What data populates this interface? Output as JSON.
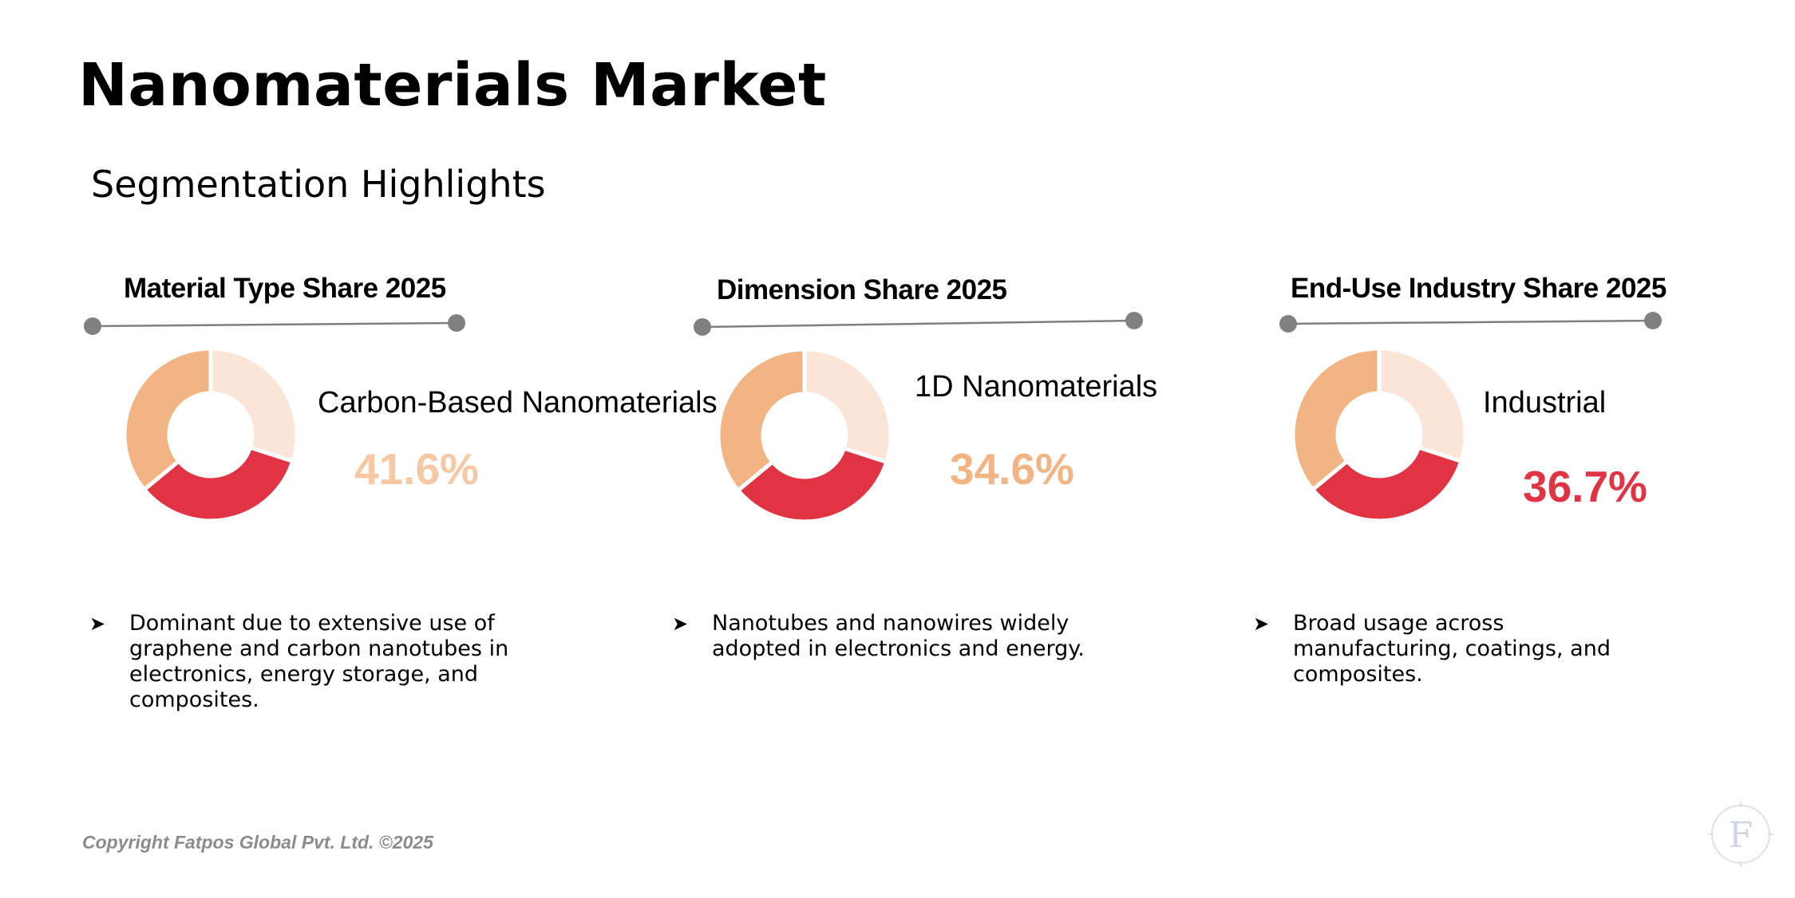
{
  "title": "Nanomaterials Market",
  "subtitle": "Segmentation Highlights",
  "colors": {
    "light": "#fae5d8",
    "orange": "#f3b484",
    "red": "#e03444",
    "connector": "#7f7f7f",
    "dot": "#808080"
  },
  "bullet_icon": "arrowhead-bullet-icon",
  "copyright": "Copyright Fatpos Global Pvt. Ltd. ©2025",
  "logo_letter": "F",
  "chart_data": [
    {
      "type": "pie",
      "title": "Material Type Share 2025",
      "highlight_label": "Carbon-Based Nanomaterials",
      "highlight_value": "41.6%",
      "highlight_color": "#f6c8a4",
      "values": [
        30,
        34,
        36
      ],
      "colors": [
        "#fae5d8",
        "#e03444",
        "#f3b484"
      ],
      "note": "Dominant due to extensive use of graphene and carbon nanotubes in electronics, energy storage, and composites."
    },
    {
      "type": "pie",
      "title": "Dimension Share 2025",
      "highlight_label": "1D Nanomaterials",
      "highlight_value": "34.6%",
      "highlight_color": "#f3b484",
      "values": [
        30,
        34,
        36
      ],
      "colors": [
        "#fae5d8",
        "#e03444",
        "#f3b484"
      ],
      "note": "Nanotubes and nanowires widely adopted in electronics and energy."
    },
    {
      "type": "pie",
      "title": "End-Use Industry Share 2025",
      "highlight_label": "Industrial",
      "highlight_value": "36.7%",
      "highlight_color": "#e03444",
      "values": [
        30,
        34,
        36
      ],
      "colors": [
        "#fae5d8",
        "#e03444",
        "#f3b484"
      ],
      "note": "Broad usage across manufacturing, coatings, and composites."
    }
  ]
}
